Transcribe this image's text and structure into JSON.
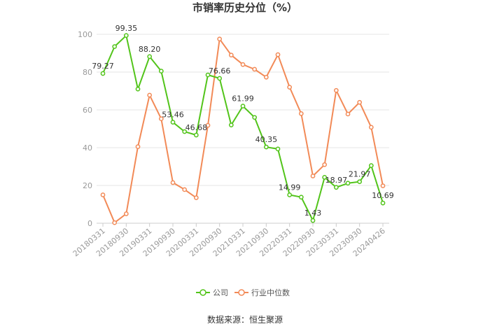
{
  "chart_data": {
    "type": "line",
    "title": "市销率历史分位（%）",
    "xlabel": "",
    "ylabel": "",
    "ylim": [
      0,
      100
    ],
    "yticks": [
      0,
      20,
      40,
      60,
      80,
      100
    ],
    "grid": true,
    "legend_position": "bottom",
    "x": [
      "20180331",
      "20180630",
      "20180930",
      "20181231",
      "20190331",
      "20190630",
      "20190930",
      "20191231",
      "20200331",
      "20200630",
      "20200930",
      "20201231",
      "20210331",
      "20210630",
      "20210930",
      "20211231",
      "20220331",
      "20220630",
      "20220930",
      "20221231",
      "20230331",
      "20230630",
      "20230930",
      "20231231",
      "20240426"
    ],
    "xtick_labels": [
      "20180331",
      "20180930",
      "20190331",
      "20190930",
      "20200331",
      "20200930",
      "20210331",
      "20210930",
      "20220331",
      "20220930",
      "20230331",
      "20230930",
      "20240426"
    ],
    "series": [
      {
        "name": "公司",
        "color": "#52c41a",
        "values": [
          79.27,
          93.5,
          99.35,
          71.0,
          88.2,
          80.5,
          53.46,
          48.5,
          46.68,
          78.5,
          76.66,
          52.0,
          61.99,
          56.0,
          40.35,
          39.3,
          14.99,
          13.8,
          1.43,
          24.3,
          18.97,
          21.2,
          21.97,
          30.5,
          10.69
        ]
      },
      {
        "name": "行业中位数",
        "color": "#f28a57",
        "values": [
          15.0,
          0.3,
          5.0,
          40.5,
          67.8,
          55.3,
          21.5,
          17.8,
          13.5,
          51.8,
          97.5,
          89.0,
          84.0,
          81.5,
          77.3,
          89.2,
          72.0,
          58.0,
          25.0,
          31.0,
          70.3,
          57.8,
          64.0,
          50.8,
          19.8
        ]
      }
    ],
    "data_labels": [
      {
        "series": 0,
        "index": 0,
        "text": "79.27"
      },
      {
        "series": 0,
        "index": 2,
        "text": "99.35"
      },
      {
        "series": 0,
        "index": 4,
        "text": "88.20"
      },
      {
        "series": 0,
        "index": 6,
        "text": "53.46"
      },
      {
        "series": 0,
        "index": 8,
        "text": "46.68"
      },
      {
        "series": 0,
        "index": 10,
        "text": "76.66"
      },
      {
        "series": 0,
        "index": 12,
        "text": "61.99"
      },
      {
        "series": 0,
        "index": 14,
        "text": "40.35"
      },
      {
        "series": 0,
        "index": 16,
        "text": "14.99"
      },
      {
        "series": 0,
        "index": 18,
        "text": "1.43"
      },
      {
        "series": 0,
        "index": 20,
        "text": "18.97"
      },
      {
        "series": 0,
        "index": 22,
        "text": "21.97"
      },
      {
        "series": 0,
        "index": 24,
        "text": "10.69"
      }
    ],
    "source": "数据来源：恒生聚源"
  }
}
